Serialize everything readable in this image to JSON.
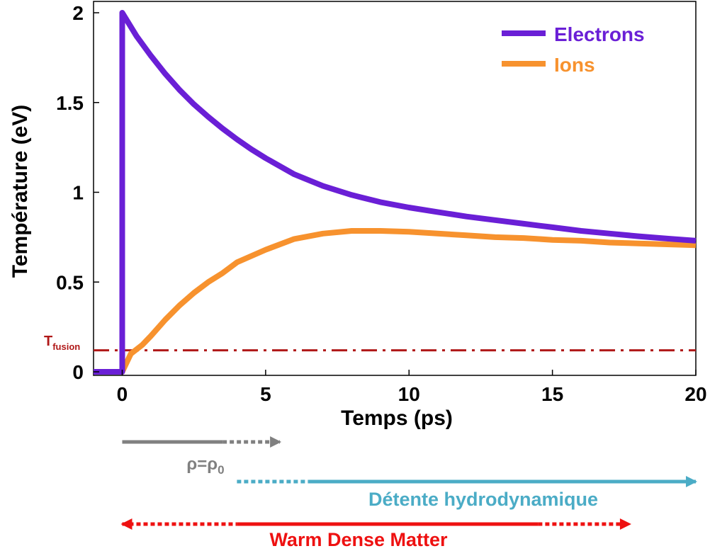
{
  "chart_data": {
    "type": "line",
    "title": "",
    "xlabel": "Temps (ps)",
    "ylabel": "Température (eV)",
    "xlim": [
      -1,
      20
    ],
    "ylim": [
      0,
      2.05
    ],
    "xticks": [
      0,
      5,
      10,
      15,
      20
    ],
    "yticks": [
      0,
      0.5,
      1,
      1.5,
      2
    ],
    "xtick_labels": [
      "0",
      "5",
      "10",
      "15",
      "20"
    ],
    "ytick_labels": [
      "0",
      "0.5",
      "1",
      "1.5",
      "2"
    ],
    "grid": false,
    "legend_position": "top-right",
    "series": [
      {
        "name": "Electrons",
        "color": "#6a1fd6",
        "points": [
          [
            -1,
            0
          ],
          [
            0,
            0
          ],
          [
            0,
            2.0
          ],
          [
            0.5,
            1.87
          ],
          [
            1,
            1.76
          ],
          [
            1.5,
            1.66
          ],
          [
            2,
            1.57
          ],
          [
            2.5,
            1.49
          ],
          [
            3,
            1.42
          ],
          [
            3.5,
            1.355
          ],
          [
            4,
            1.295
          ],
          [
            4.5,
            1.24
          ],
          [
            5,
            1.19
          ],
          [
            6,
            1.1
          ],
          [
            7,
            1.035
          ],
          [
            8,
            0.985
          ],
          [
            9,
            0.945
          ],
          [
            10,
            0.915
          ],
          [
            11,
            0.89
          ],
          [
            12,
            0.865
          ],
          [
            13,
            0.845
          ],
          [
            14,
            0.825
          ],
          [
            15,
            0.805
          ],
          [
            16,
            0.785
          ],
          [
            17,
            0.77
          ],
          [
            18,
            0.755
          ],
          [
            19,
            0.742
          ],
          [
            20,
            0.73
          ]
        ]
      },
      {
        "name": "Ions",
        "color": "#f7922e",
        "points": [
          [
            -1,
            0
          ],
          [
            0,
            0
          ],
          [
            0.3,
            0.1
          ],
          [
            0.7,
            0.15
          ],
          [
            1,
            0.2
          ],
          [
            1.5,
            0.29
          ],
          [
            2,
            0.37
          ],
          [
            2.5,
            0.44
          ],
          [
            3,
            0.5
          ],
          [
            3.5,
            0.55
          ],
          [
            4,
            0.61
          ],
          [
            5,
            0.68
          ],
          [
            6,
            0.74
          ],
          [
            7,
            0.77
          ],
          [
            8,
            0.785
          ],
          [
            9,
            0.785
          ],
          [
            10,
            0.78
          ],
          [
            11,
            0.77
          ],
          [
            12,
            0.76
          ],
          [
            13,
            0.75
          ],
          [
            14,
            0.745
          ],
          [
            15,
            0.735
          ],
          [
            16,
            0.73
          ],
          [
            17,
            0.72
          ],
          [
            18,
            0.715
          ],
          [
            19,
            0.71
          ],
          [
            20,
            0.705
          ]
        ]
      }
    ],
    "threshold": {
      "label_main": "T",
      "label_sub": "fusion",
      "value": 0.12,
      "color": "#b01818",
      "style": "dash-dot"
    },
    "annotations": [
      {
        "label_main": "ρ=ρ",
        "label_sub": "0",
        "color": "#808080",
        "solid": [
          0,
          3.5
        ],
        "dotted": [
          3.5,
          5.5
        ],
        "arrow_left": false,
        "arrow_right": true
      },
      {
        "label_main": "Détente hydrodynamique",
        "label_sub": "",
        "color": "#4bacc6",
        "solid": [
          6.5,
          20
        ],
        "dotted": [
          4,
          6.5
        ],
        "arrow_left": false,
        "arrow_right": true
      },
      {
        "label_main": "Warm Dense Matter",
        "label_sub": "",
        "color": "#ee1111",
        "solid": [
          4,
          14.5
        ],
        "dotted": [
          0,
          4
        ],
        "dotted2": [
          14.5,
          17.7
        ],
        "arrow_left": true,
        "arrow_right": true
      }
    ]
  }
}
